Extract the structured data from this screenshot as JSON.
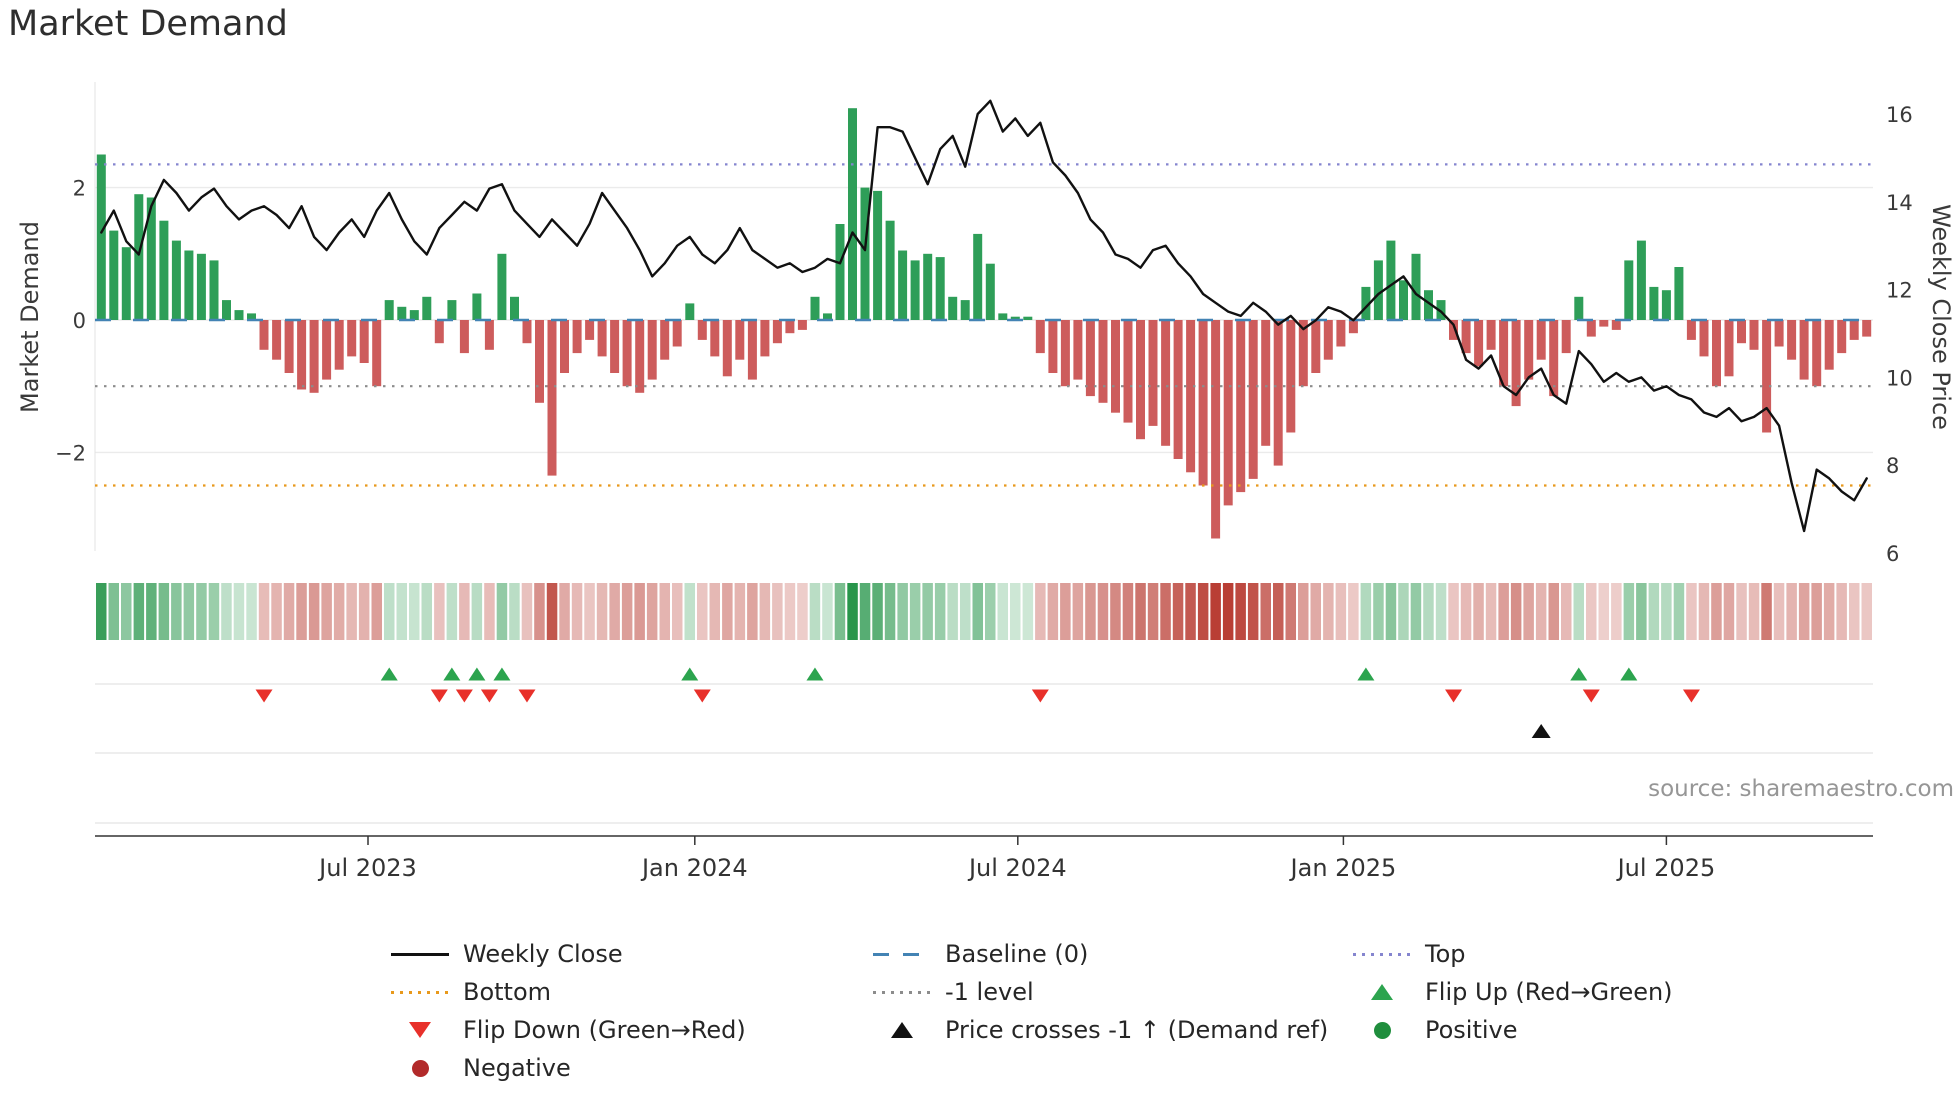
{
  "title": "Market Demand",
  "source": "source: sharemaestro.com",
  "axes": {
    "left_label": "Market Demand",
    "right_label": "Weekly Close Price",
    "demand_ticks": [
      {
        "value": 2,
        "label": "2"
      },
      {
        "value": 0,
        "label": "0"
      },
      {
        "value": -2,
        "label": "−2"
      }
    ],
    "price_ticks": [
      {
        "value": 16,
        "label": "16"
      },
      {
        "value": 14,
        "label": "14"
      },
      {
        "value": 12,
        "label": "12"
      },
      {
        "value": 10,
        "label": "10"
      },
      {
        "value": 8,
        "label": "8"
      },
      {
        "value": 6,
        "label": "6"
      }
    ],
    "x_ticks": [
      {
        "label": "Jul 2023",
        "week": 21.8
      },
      {
        "label": "Jan 2024",
        "week": 47.9
      },
      {
        "label": "Jul 2024",
        "week": 73.7
      },
      {
        "label": "Jan 2025",
        "week": 99.7
      },
      {
        "label": "Jul 2025",
        "week": 125.5
      }
    ]
  },
  "chart_data": {
    "type": "bar+line",
    "x_start_week": "2023-02-06",
    "frequency": "weekly",
    "n_weeks": 142,
    "ylim_left": [
      -3.6,
      3.4
    ],
    "ylim_right": [
      6,
      16.6
    ],
    "levels": {
      "baseline": 0,
      "top": 2.35,
      "minus_one": -1,
      "bottom": -2.5
    },
    "series": [
      {
        "name": "Market Demand",
        "type": "bar",
        "axis": "left",
        "values": [
          2.5,
          1.35,
          1.1,
          1.9,
          1.85,
          1.5,
          1.2,
          1.05,
          1.0,
          0.9,
          0.3,
          0.15,
          0.1,
          -0.45,
          -0.6,
          -0.8,
          -1.05,
          -1.1,
          -0.9,
          -0.75,
          -0.55,
          -0.65,
          -1.0,
          0.3,
          0.2,
          0.15,
          0.35,
          -0.35,
          0.3,
          -0.5,
          0.4,
          -0.45,
          1.0,
          0.35,
          -0.35,
          -1.25,
          -2.35,
          -0.8,
          -0.5,
          -0.3,
          -0.55,
          -0.8,
          -1.0,
          -1.1,
          -0.9,
          -0.6,
          -0.4,
          0.25,
          -0.3,
          -0.55,
          -0.85,
          -0.6,
          -0.9,
          -0.55,
          -0.35,
          -0.2,
          -0.15,
          0.35,
          0.1,
          1.45,
          3.2,
          2.0,
          1.95,
          1.5,
          1.05,
          0.9,
          1.0,
          0.95,
          0.35,
          0.3,
          1.3,
          0.85,
          0.1,
          0.05,
          0.05,
          -0.5,
          -0.8,
          -1.0,
          -0.9,
          -1.15,
          -1.25,
          -1.4,
          -1.55,
          -1.8,
          -1.6,
          -1.9,
          -2.1,
          -2.3,
          -2.5,
          -3.3,
          -2.8,
          -2.6,
          -2.4,
          -1.9,
          -2.2,
          -1.7,
          -1.0,
          -0.8,
          -0.6,
          -0.4,
          -0.2,
          0.5,
          0.9,
          1.2,
          0.6,
          1.0,
          0.45,
          0.3,
          -0.3,
          -0.5,
          -0.7,
          -0.45,
          -1.0,
          -1.3,
          -0.9,
          -0.6,
          -1.15,
          -0.5,
          0.35,
          -0.25,
          -0.1,
          -0.15,
          0.9,
          1.2,
          0.5,
          0.45,
          0.8,
          -0.3,
          -0.55,
          -1.0,
          -0.85,
          -0.35,
          -0.45,
          -1.7,
          -0.4,
          -0.6,
          -0.9,
          -1.0,
          -0.75,
          -0.5,
          -0.3,
          -0.25
        ]
      },
      {
        "name": "Weekly Close",
        "type": "line",
        "axis": "right",
        "values": [
          13.3,
          13.8,
          13.1,
          12.8,
          13.9,
          14.5,
          14.2,
          13.8,
          14.1,
          14.3,
          13.9,
          13.6,
          13.8,
          13.9,
          13.7,
          13.4,
          13.9,
          13.2,
          12.9,
          13.3,
          13.6,
          13.2,
          13.8,
          14.2,
          13.6,
          13.1,
          12.8,
          13.4,
          13.7,
          14.0,
          13.8,
          14.3,
          14.4,
          13.8,
          13.5,
          13.2,
          13.6,
          13.3,
          13.0,
          13.5,
          14.2,
          13.8,
          13.4,
          12.9,
          12.3,
          12.6,
          13.0,
          13.2,
          12.8,
          12.6,
          12.9,
          13.4,
          12.9,
          12.7,
          12.5,
          12.6,
          12.4,
          12.5,
          12.7,
          12.6,
          13.3,
          12.9,
          15.7,
          15.7,
          15.6,
          15.0,
          14.4,
          15.2,
          15.5,
          14.8,
          16.0,
          16.3,
          15.6,
          15.9,
          15.5,
          15.8,
          14.9,
          14.6,
          14.2,
          13.6,
          13.3,
          12.8,
          12.7,
          12.5,
          12.9,
          13.0,
          12.6,
          12.3,
          11.9,
          11.7,
          11.5,
          11.4,
          11.7,
          11.5,
          11.2,
          11.4,
          11.1,
          11.3,
          11.6,
          11.5,
          11.3,
          11.6,
          11.9,
          12.1,
          12.3,
          11.9,
          11.7,
          11.5,
          11.2,
          10.4,
          10.2,
          10.5,
          9.8,
          9.6,
          10.0,
          10.2,
          9.6,
          9.4,
          10.6,
          10.3,
          9.9,
          10.1,
          9.9,
          10.0,
          9.7,
          9.8,
          9.6,
          9.5,
          9.2,
          9.1,
          9.3,
          9.0,
          9.1,
          9.3,
          8.9,
          7.6,
          6.5,
          7.9,
          7.7,
          7.4,
          7.2,
          7.7
        ]
      }
    ],
    "markers": {
      "flip_up_weeks": [
        23,
        28,
        30,
        32,
        47,
        57,
        101,
        118,
        122
      ],
      "flip_down_weeks": [
        13,
        27,
        29,
        31,
        34,
        48,
        75,
        108,
        119,
        127
      ],
      "price_cross_weeks": [
        115
      ]
    },
    "colors": {
      "positive": "#2e9e58",
      "negative": "#cd5c5c",
      "line": "#111111",
      "baseline": "#4383b4",
      "top": "#8585cf",
      "minus_one": "#8c8c8c",
      "bottom": "#e8991c",
      "flip_up": "#2ca44e",
      "flip_down": "#e8302a",
      "price_cross": "#111111",
      "positive_dot": "#1f8e3d",
      "negative_dot": "#b22a2a"
    }
  },
  "legend": {
    "weekly_close": "Weekly Close",
    "baseline": "Baseline (0)",
    "top": "Top",
    "bottom": "Bottom",
    "minus_one": "-1 level",
    "flip_up": "Flip Up (Red→Green)",
    "flip_down": "Flip Down (Green→Red)",
    "price_cross": "Price crosses -1 ↑ (Demand ref)",
    "positive": "Positive",
    "negative": "Negative"
  }
}
